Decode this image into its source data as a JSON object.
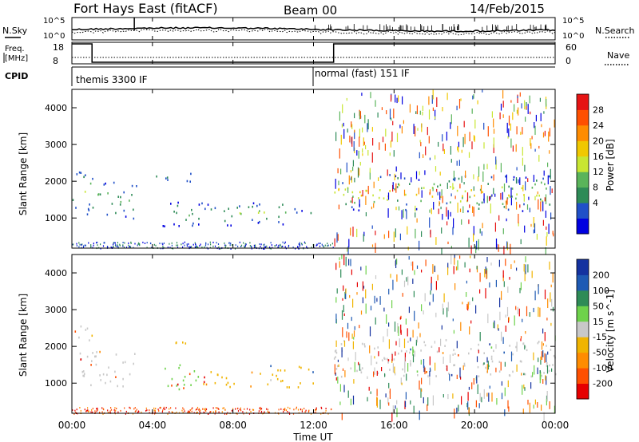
{
  "header": {
    "station": "Fort Hays East (fitACF)",
    "beam": "Beam 00",
    "date": "14/Feb/2015"
  },
  "top_panel": {
    "left_label": "N.Sky",
    "right_label": "N.Search",
    "left_ticks": [
      "10^5",
      "10^0"
    ],
    "right_ticks": [
      "10^5",
      "10^0"
    ]
  },
  "freq_panel": {
    "left_label_1": "Freq.",
    "left_label_2": "[MHz]",
    "right_label": "Nave",
    "left_ticks": [
      "18",
      "8"
    ],
    "right_ticks": [
      "60",
      "0"
    ],
    "freq_segments": [
      {
        "start_hour": 0,
        "end_hour": 1.0,
        "value_mhz": 18
      },
      {
        "start_hour": 1.0,
        "end_hour": 13.0,
        "value_mhz": 8
      },
      {
        "start_hour": 13.0,
        "end_hour": 24,
        "value_mhz": 18
      }
    ]
  },
  "cpid": {
    "label": "CPID",
    "mode1": "themis 3300 IF",
    "mode2": "normal (fast) 151 IF"
  },
  "chart_data": [
    {
      "type": "heatmap",
      "name": "power",
      "ylabel": "Slant Range [km]",
      "xlabel": "Time UT",
      "xlim_hours": [
        0,
        24
      ],
      "ylim_km": [
        180,
        4500
      ],
      "y_ticks": [
        "4000",
        "3000",
        "2000",
        "1000"
      ],
      "y_tick_values": [
        4000,
        3000,
        2000,
        1000
      ],
      "colorbar_label": "Power [dB]",
      "colorbar_ticks": [
        "28",
        "24",
        "20",
        "16",
        "12",
        "8",
        "4"
      ],
      "colorbar_colors": [
        "#0000e0",
        "#2050c8",
        "#2e8b57",
        "#5ab45a",
        "#c8e632",
        "#f0c800",
        "#ff8c00",
        "#ff5000",
        "#e61414"
      ],
      "echo_regions": [
        {
          "t0": 0.0,
          "t1": 1.0,
          "r0": 1100,
          "r1": 2400,
          "level": 4
        },
        {
          "t0": 1.0,
          "t1": 3.2,
          "r0": 1000,
          "r1": 2000,
          "level": 3
        },
        {
          "t0": 4.0,
          "t1": 6.0,
          "r0": 2000,
          "r1": 2300,
          "level": 2
        },
        {
          "t0": 4.5,
          "t1": 11.0,
          "r0": 800,
          "r1": 1500,
          "level": 3
        },
        {
          "t0": 11.0,
          "t1": 12.0,
          "r0": 1000,
          "r1": 1400,
          "level": 1
        },
        {
          "t0": 13.0,
          "t1": 24.0,
          "r0": 1200,
          "r1": 2200,
          "level": 5
        }
      ]
    },
    {
      "type": "heatmap",
      "name": "velocity",
      "ylabel": "Slant Range [km]",
      "xlabel": "Time UT",
      "xlim_hours": [
        0,
        24
      ],
      "ylim_km": [
        180,
        4500
      ],
      "y_ticks": [
        "4000",
        "3000",
        "2000",
        "1000"
      ],
      "y_tick_values": [
        4000,
        3000,
        2000,
        1000
      ],
      "colorbar_label": "Velocity [m s^-1]",
      "colorbar_ticks": [
        "200",
        "100",
        "50",
        "15",
        "-15",
        "-50",
        "-100",
        "-200"
      ],
      "colorbar_colors": [
        "#e60000",
        "#ff5000",
        "#ff8c00",
        "#f0b400",
        "#c8c8c8",
        "#6ed24b",
        "#2e8b57",
        "#1e5ab4",
        "#1432a0"
      ],
      "echo_regions": [
        {
          "t0": 0.0,
          "t1": 1.0,
          "r0": 900,
          "r1": 2600,
          "color": "#c8c8c8"
        },
        {
          "t0": 1.0,
          "t1": 3.2,
          "r0": 900,
          "r1": 1900,
          "color": "#c8c8c8"
        },
        {
          "t0": 4.0,
          "t1": 6.0,
          "r0": 2000,
          "r1": 2200,
          "color": "#f0b400"
        },
        {
          "t0": 4.5,
          "t1": 6.5,
          "r0": 800,
          "r1": 1600,
          "color": "#6ed24b"
        },
        {
          "t0": 6.5,
          "t1": 12.0,
          "r0": 900,
          "r1": 1500,
          "color": "#f0b400"
        },
        {
          "t0": 13.0,
          "t1": 24.0,
          "r0": 1200,
          "r1": 2200,
          "color": "#c8c8c8"
        }
      ]
    }
  ],
  "x_axis": {
    "ticks": [
      "00:00",
      "04:00",
      "08:00",
      "12:00",
      "16:00",
      "20:00",
      "00:00"
    ],
    "tick_hours": [
      0,
      4,
      8,
      12,
      16,
      20,
      24
    ],
    "label": "Time UT"
  }
}
